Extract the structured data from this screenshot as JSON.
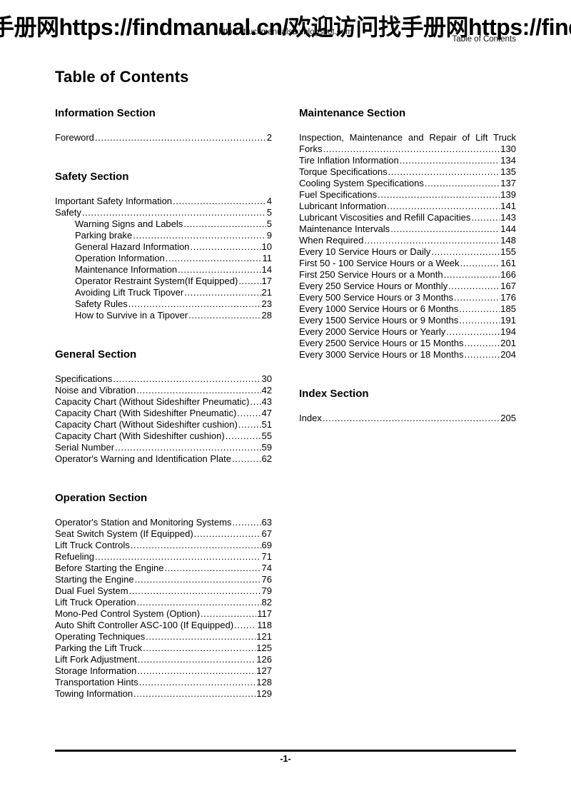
{
  "watermark": {
    "text": "手册网https://findmanual.cn/欢迎访问找手册网https://findm"
  },
  "header": {
    "center_text": "https://truckmanuals2u.blogspot.com",
    "right_text": "Table of Contents"
  },
  "title": "Table of Contents",
  "columns": {
    "left": [
      {
        "heading": "Information Section",
        "entries": [
          {
            "title": "Foreword",
            "page": "2"
          }
        ]
      },
      {
        "heading": "Safety Section",
        "entries": [
          {
            "title": "Important Safety Information",
            "page": "4"
          },
          {
            "title": "Safety",
            "page": "5"
          },
          {
            "title": "Warning Signs and Labels",
            "page": "5",
            "indent": true
          },
          {
            "title": "Parking brake",
            "page": "9",
            "indent": true
          },
          {
            "title": "General Hazard Information",
            "page": "10",
            "indent": true
          },
          {
            "title": "Operation Information",
            "page": "11",
            "indent": true
          },
          {
            "title": "Maintenance Information",
            "page": "14",
            "indent": true
          },
          {
            "title": "Operator Restraint System(If Equipped)",
            "page": "17",
            "indent": true
          },
          {
            "title": "Avoiding Lift Truck Tipover",
            "page": "21",
            "indent": true
          },
          {
            "title": "Safety Rules",
            "page": "23",
            "indent": true
          },
          {
            "title": "How to Survive in a Tipover",
            "page": "28",
            "indent": true
          }
        ]
      },
      {
        "heading": "General Section",
        "entries": [
          {
            "title": "Specifications",
            "page": "30"
          },
          {
            "title": "Noise and Vibration",
            "page": "42"
          },
          {
            "title": "Capacity Chart (Without Sideshifter Pneumatic)",
            "page": "43"
          },
          {
            "title": "Capacity Chart (With Sideshifter Pneumatic)",
            "page": "47"
          },
          {
            "title": "Capacity Chart (Without Sideshifter cushion)",
            "page": "51"
          },
          {
            "title": "Capacity Chart (With Sideshifter cushion)",
            "page": "55"
          },
          {
            "title": "Serial Number",
            "page": "59"
          },
          {
            "title": "Operator's Warning and Identification Plate",
            "page": "62"
          }
        ]
      },
      {
        "heading": "Operation Section",
        "entries": [
          {
            "title": "Operator's Station and Monitoring Systems",
            "page": "63"
          },
          {
            "title": "Seat Switch System (If Equipped)",
            "page": "67"
          },
          {
            "title": "Lift Truck Controls",
            "page": "69"
          },
          {
            "title": "Refueling",
            "page": "71"
          },
          {
            "title": "Before Starting the Engine",
            "page": "74"
          },
          {
            "title": "Starting the Engine",
            "page": "76"
          },
          {
            "title": "Dual Fuel System",
            "page": "79"
          },
          {
            "title": "Lift Truck Operation",
            "page": "82"
          },
          {
            "title": "Mono-Ped Control System (Option)",
            "page": "117"
          },
          {
            "title": "Auto Shift Controller ASC-100 (If Equipped)",
            "page": "118"
          },
          {
            "title": "Operating Techniques",
            "page": "121"
          },
          {
            "title": "Parking the Lift Truck",
            "page": "125"
          },
          {
            "title": "Lift Fork Adjustment",
            "page": "126"
          },
          {
            "title": "Storage Information",
            "page": "127"
          },
          {
            "title": "Transportation Hints",
            "page": "128"
          },
          {
            "title": "Towing Information",
            "page": "129"
          }
        ]
      }
    ],
    "right": [
      {
        "heading": "Maintenance Section",
        "entries": [
          {
            "wrap_line": "Inspection, Maintenance and Repair of Lift Truck",
            "title": "Forks",
            "page": "130"
          },
          {
            "title": "Tire Inflation Information",
            "page": "134"
          },
          {
            "title": "Torque Specifications",
            "page": "135"
          },
          {
            "title": "Cooling System Specifications",
            "page": "137"
          },
          {
            "title": "Fuel Specifications",
            "page": "139"
          },
          {
            "title": "Lubricant Information",
            "page": "141"
          },
          {
            "title": "Lubricant Viscosities and Refill Capacities",
            "page": "143"
          },
          {
            "title": "Maintenance Intervals",
            "page": "144"
          },
          {
            "title": "When Required",
            "page": "148"
          },
          {
            "title": "Every 10 Service Hours or Daily",
            "page": "155"
          },
          {
            "title": "First 50 - 100 Service Hours or a Week",
            "page": "161"
          },
          {
            "title": "First 250 Service Hours or a Month",
            "page": "166"
          },
          {
            "title": "Every 250 Service Hours or Monthly",
            "page": "167"
          },
          {
            "title": "Every 500 Service Hours or 3 Months",
            "page": "176"
          },
          {
            "title": "Every 1000 Service Hours or 6 Months",
            "page": "185"
          },
          {
            "title": "Every 1500 Service Hours or 9 Months",
            "page": "191"
          },
          {
            "title": "Every 2000 Service Hours or Yearly",
            "page": "194"
          },
          {
            "title": "Every 2500 Service Hours or 15 Months",
            "page": "201"
          },
          {
            "title": "Every 3000 Service Hours or 18 Months",
            "page": "204"
          }
        ]
      },
      {
        "heading": "Index Section",
        "entries": [
          {
            "title": "Index",
            "page": "205"
          }
        ]
      }
    ]
  },
  "footer": {
    "page_number": "-1-"
  }
}
